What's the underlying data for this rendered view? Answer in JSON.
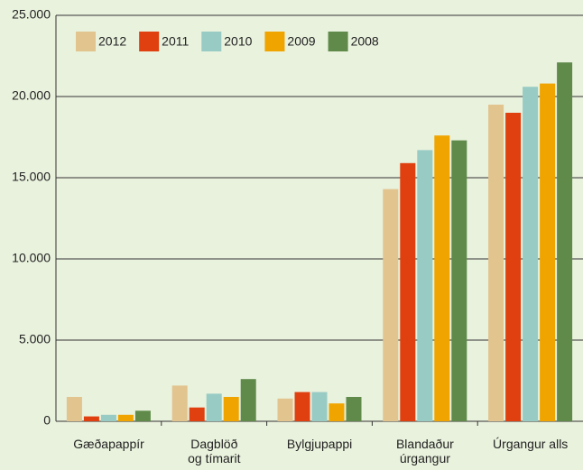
{
  "chart_data": {
    "type": "bar",
    "categories": [
      "Gæðapappír",
      "Dagblöð\nog tímarit",
      "Bylgjupappi",
      "Blandaður\núrgangur",
      "Úrgangur alls"
    ],
    "series": [
      {
        "name": "2012",
        "color": "#e2c48e",
        "values": [
          1500,
          2200,
          1400,
          14300,
          19500
        ]
      },
      {
        "name": "2011",
        "color": "#e0400f",
        "values": [
          300,
          850,
          1800,
          15900,
          19000
        ]
      },
      {
        "name": "2010",
        "color": "#98cbc4",
        "values": [
          400,
          1700,
          1800,
          16700,
          20600
        ]
      },
      {
        "name": "2009",
        "color": "#f0a400",
        "values": [
          400,
          1500,
          1100,
          17600,
          20800
        ]
      },
      {
        "name": "2008",
        "color": "#5f8a4a",
        "values": [
          650,
          2600,
          1500,
          17300,
          22100
        ]
      }
    ],
    "ylim": [
      0,
      25000
    ],
    "yticks": [
      0,
      {
        "value": 5000,
        "label": "5.000"
      },
      {
        "value": 10000,
        "label": "10.000"
      },
      {
        "value": 15000,
        "label": "15.000"
      },
      {
        "value": 20000,
        "label": "20.000"
      },
      {
        "value": 25000,
        "label": "25.000"
      }
    ],
    "grid": true,
    "legend": "top-left"
  }
}
